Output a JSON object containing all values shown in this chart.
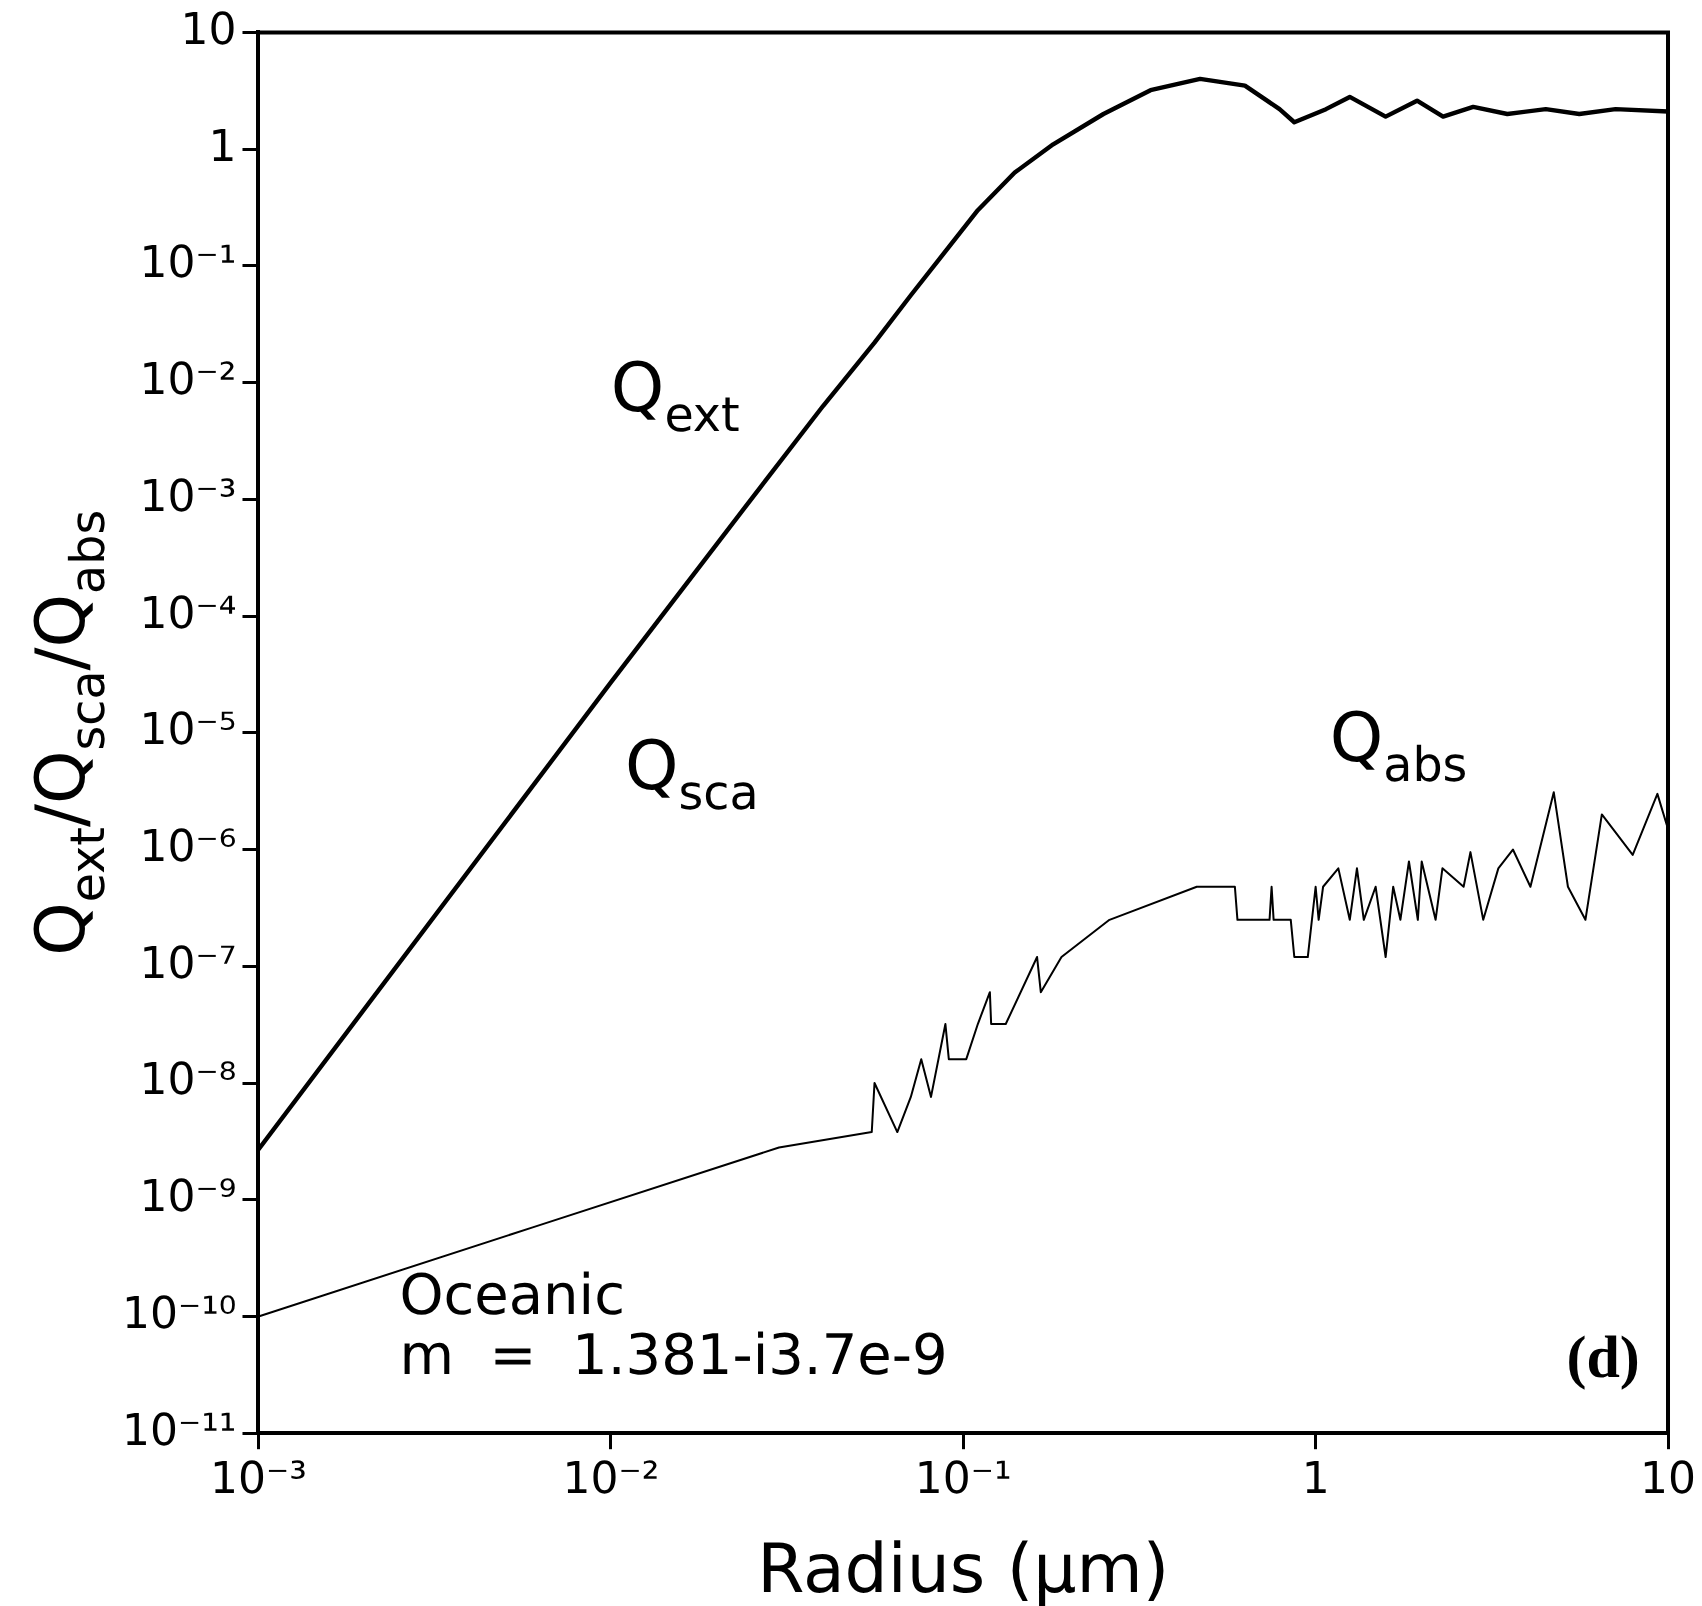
{
  "chart_data": {
    "type": "line",
    "xlabel": "Radius (μm)",
    "ylabel": "Q$_{ext}$/Q$_{sca}$/Q$_{abs}$",
    "log": "xy",
    "grid": false,
    "legend": false,
    "marker": "none",
    "line_style": "solid",
    "xlim": [
      0.001,
      10
    ],
    "ylim": [
      1e-11,
      10
    ],
    "xticks": [
      {
        "value": 0.001,
        "label": "10⁻³"
      },
      {
        "value": 0.01,
        "label": "10⁻²"
      },
      {
        "value": 0.1,
        "label": "10⁻¹"
      },
      1,
      10
    ],
    "yticks": [
      {
        "value": 1e-11,
        "label": "10⁻¹¹"
      },
      {
        "value": 1e-10,
        "label": "10⁻¹⁰"
      },
      {
        "value": 1e-09,
        "label": "10⁻⁹"
      },
      {
        "value": 1e-08,
        "label": "10⁻⁸"
      },
      {
        "value": 1e-07,
        "label": "10⁻⁷"
      },
      {
        "value": 1e-06,
        "label": "10⁻⁶"
      },
      {
        "value": 1e-05,
        "label": "10⁻⁵"
      },
      {
        "value": 0.0001,
        "label": "10⁻⁴"
      },
      {
        "value": 0.001,
        "label": "10⁻³"
      },
      {
        "value": 0.01,
        "label": "10⁻²"
      },
      {
        "value": 0.1,
        "label": "10⁻¹"
      },
      1,
      10
    ],
    "series": [
      {
        "color": "#000000",
        "x": [
          0.001,
          0.01,
          0.025,
          0.04,
          0.056,
          0.071,
          0.11,
          0.14,
          0.18,
          0.25,
          0.34,
          0.47,
          0.63,
          0.79,
          0.87,
          1.07,
          1.25,
          1.58,
          1.94,
          2.3,
          2.8,
          3.5,
          4.5,
          5.6,
          7.1,
          10
        ],
        "values": [
          2.7e-09,
          2.7e-05,
          0.001,
          0.0063,
          0.022,
          0.056,
          0.3,
          0.63,
          1.1,
          2.0,
          3.2,
          4.0,
          3.5,
          2.2,
          1.7,
          2.2,
          2.8,
          1.9,
          2.6,
          1.9,
          2.3,
          2.0,
          2.2,
          2.0,
          2.2,
          2.1
        ]
      },
      {
        "color": "#000000",
        "x": [
          0.001,
          0.006,
          0.03,
          0.055,
          0.056,
          0.065,
          0.071,
          0.076,
          0.081,
          0.089,
          0.091,
          0.102,
          0.11,
          0.119,
          0.12,
          0.132,
          0.162,
          0.166,
          0.19,
          0.26,
          0.46,
          0.59,
          0.6,
          0.74,
          0.75,
          0.76,
          0.85,
          0.87,
          0.95,
          1.0,
          1.02,
          1.05,
          1.16,
          1.25,
          1.31,
          1.37,
          1.48,
          1.58,
          1.66,
          1.74,
          1.84,
          1.95,
          2.0,
          2.19,
          2.29,
          2.63,
          2.75,
          2.99,
          3.3,
          3.63,
          4.07,
          4.74,
          5.2,
          5.83,
          6.49,
          7.94,
          9.33,
          10
        ],
        "values": [
          1e-10,
          5.8e-10,
          2.8e-09,
          3.8e-09,
          1e-08,
          3.8e-09,
          7.6e-09,
          1.6e-08,
          7.6e-09,
          3.2e-08,
          1.6e-08,
          1.6e-08,
          3.2e-08,
          6e-08,
          3.2e-08,
          3.2e-08,
          1.2e-07,
          6e-08,
          1.2e-07,
          2.5e-07,
          4.8e-07,
          4.8e-07,
          2.5e-07,
          2.5e-07,
          4.8e-07,
          2.5e-07,
          2.5e-07,
          1.2e-07,
          1.2e-07,
          4.8e-07,
          2.5e-07,
          4.8e-07,
          6.9e-07,
          2.5e-07,
          6.9e-07,
          2.5e-07,
          4.8e-07,
          1.2e-07,
          4.8e-07,
          2.5e-07,
          7.9e-07,
          2.5e-07,
          7.9e-07,
          2.5e-07,
          6.9e-07,
          4.8e-07,
          9.5e-07,
          2.5e-07,
          6.9e-07,
          1e-06,
          4.8e-07,
          3.1e-06,
          4.8e-07,
          2.5e-07,
          2e-06,
          9e-07,
          3e-06,
          1.5e-06
        ]
      }
    ],
    "annotations": [
      "Q$_{ext}$",
      "Q$_{sca}$",
      "Q$_{abs}$",
      "Oceanic",
      "m  =  1.381-i3.7e-9",
      "(d)"
    ]
  }
}
